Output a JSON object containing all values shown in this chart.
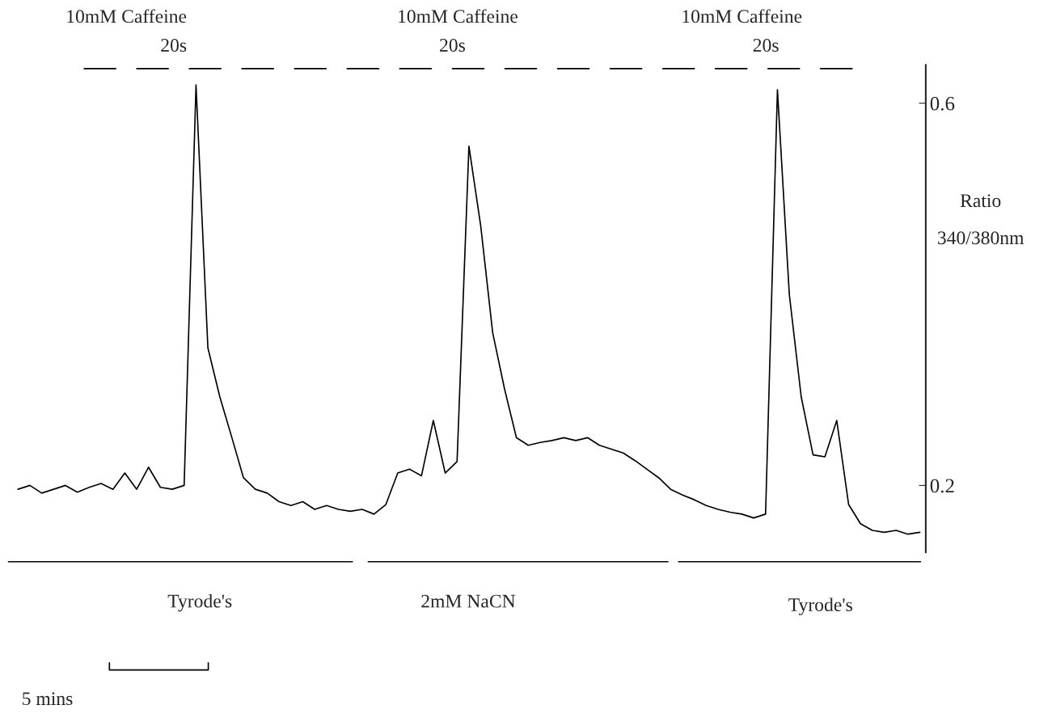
{
  "chart_data": {
    "type": "line",
    "ylabel": "Ratio\n340/380nm",
    "categories": [
      null,
      null,
      null,
      null,
      null,
      null,
      null,
      null,
      null,
      null,
      null,
      null,
      null,
      null,
      null,
      null,
      null,
      null,
      null,
      null,
      null,
      null,
      null,
      null,
      null,
      null,
      null,
      null,
      null,
      null,
      null,
      null,
      null,
      null,
      null,
      null,
      null,
      null,
      null,
      null,
      null,
      null,
      null,
      null,
      null,
      null,
      null,
      null,
      null,
      null,
      null,
      null,
      null,
      null,
      null,
      null,
      null,
      null,
      null,
      null,
      null,
      null,
      null,
      null,
      null,
      null,
      null,
      null,
      null,
      null,
      null,
      null,
      null,
      null,
      null,
      null,
      null
    ],
    "series": [
      {
        "color": "#000000",
        "values": [
          0.196,
          0.2,
          0.192,
          0.196,
          0.2,
          0.193,
          0.198,
          0.202,
          0.196,
          0.213,
          0.196,
          0.219,
          0.198,
          0.196,
          0.2,
          0.619,
          0.344,
          0.293,
          0.251,
          0.208,
          0.196,
          0.192,
          0.183,
          0.179,
          0.183,
          0.175,
          0.179,
          0.175,
          0.173,
          0.175,
          0.17,
          0.18,
          0.213,
          0.217,
          0.21,
          0.268,
          0.213,
          0.225,
          0.555,
          0.471,
          0.36,
          0.301,
          0.25,
          0.242,
          0.245,
          0.247,
          0.25,
          0.247,
          0.25,
          0.242,
          0.238,
          0.234,
          0.226,
          0.217,
          0.208,
          0.196,
          0.19,
          0.185,
          0.179,
          0.175,
          0.172,
          0.17,
          0.166,
          0.17,
          0.614,
          0.4,
          0.293,
          0.232,
          0.23,
          0.268,
          0.18,
          0.16,
          0.153,
          0.151,
          0.153,
          0.149,
          0.151
        ]
      }
    ],
    "ylim": [
      0.13,
      0.64
    ],
    "yticks": [
      0.2,
      0.6
    ],
    "tick_labels": "y",
    "grid": false,
    "line_style": "solid",
    "marker": "none",
    "annotations": [
      "10mM Caffeine",
      "20s",
      "10mM Caffeine",
      "20s",
      "10mM Caffeine",
      "20s",
      "Tyrode's",
      "2mM NaCN",
      "Tyrode's",
      "5 mins"
    ]
  }
}
